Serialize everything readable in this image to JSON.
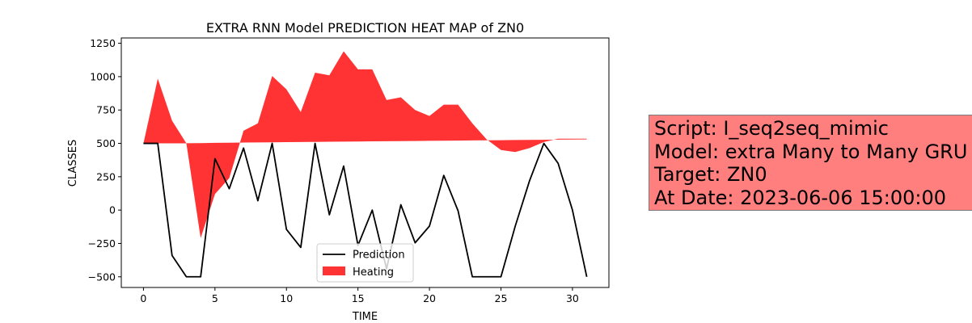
{
  "chart_data": {
    "type": "area",
    "title": "EXTRA RNN Model PREDICTION HEAT MAP of ZN0",
    "xlabel": "TIME",
    "ylabel": "CLASSES",
    "xlim": [
      -1.55,
      32.55
    ],
    "ylim": [
      -580,
      1290
    ],
    "xticks": [
      0,
      5,
      10,
      15,
      20,
      25,
      30
    ],
    "yticks": [
      -500,
      -250,
      0,
      250,
      500,
      750,
      1000,
      1250
    ],
    "legend_position": "lower center",
    "grid": false,
    "series": [
      {
        "name": "Prediction",
        "kind": "line",
        "color": "#000000",
        "x": [
          0,
          1,
          2,
          3,
          4,
          5,
          6,
          7,
          8,
          9,
          10,
          11,
          12,
          13,
          14,
          15,
          16,
          17,
          18,
          19,
          20,
          21,
          22,
          23,
          24,
          25,
          26,
          27,
          28,
          29,
          30,
          31
        ],
        "values": [
          500,
          500,
          -340,
          -500,
          -500,
          385,
          160,
          465,
          70,
          500,
          -145,
          -280,
          500,
          -35,
          330,
          -265,
          0,
          -440,
          40,
          -245,
          -120,
          260,
          -5,
          -500,
          -500,
          -500,
          -120,
          220,
          500,
          350,
          0,
          -500
        ]
      },
      {
        "name": "Heating",
        "kind": "fill_between",
        "color": "#ff0000",
        "alpha": 0.8,
        "x": [
          0,
          1,
          2,
          3,
          4,
          5,
          6,
          7,
          8,
          9,
          10,
          11,
          12,
          13,
          14,
          15,
          16,
          17,
          18,
          19,
          20,
          21,
          22,
          23,
          24,
          25,
          26,
          27,
          28,
          29,
          30,
          31
        ],
        "upper": [
          500,
          985,
          670,
          500,
          -210,
          120,
          240,
          595,
          650,
          1005,
          905,
          735,
          1030,
          1010,
          1190,
          1055,
          1055,
          825,
          845,
          750,
          705,
          790,
          790,
          650,
          530,
          450,
          435,
          465,
          510,
          535,
          535,
          535
        ],
        "baseline": [
          500,
          500,
          500,
          501,
          502,
          504,
          505,
          506,
          507,
          508,
          509,
          510,
          511,
          512,
          513,
          514,
          515,
          516,
          517,
          518,
          519,
          520,
          521,
          522,
          523,
          524,
          525,
          526,
          527,
          528,
          529,
          530
        ]
      }
    ]
  },
  "info_box": {
    "lines": [
      "Script: I_seq2seq_mimic",
      "Model: extra Many to Many GRU",
      "Target: ZN0",
      "At Date: 2023-06-06 15:00:00"
    ]
  }
}
